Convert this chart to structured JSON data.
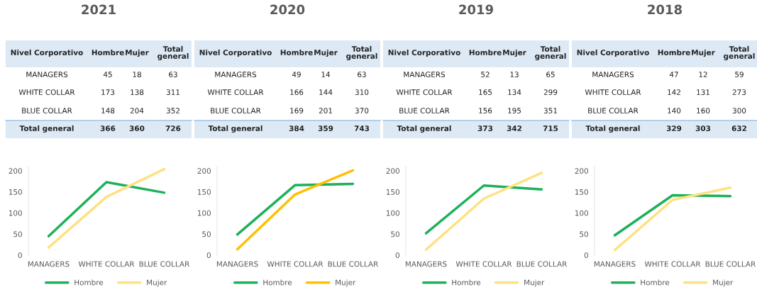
{
  "chart_data": [
    {
      "type": "line",
      "title": "2021",
      "categories": [
        "MANAGERS",
        "WHITE COLLAR",
        "BLUE COLLAR"
      ],
      "ylim": [
        0,
        210
      ],
      "yticks": [
        0,
        50,
        100,
        150,
        200
      ],
      "legend": "bottom",
      "series": [
        {
          "name": "Hombre",
          "color": "#1db15a",
          "values": [
            45,
            173,
            148
          ]
        },
        {
          "name": "Mujer",
          "color": "#ffe182",
          "values": [
            18,
            138,
            204
          ]
        }
      ],
      "annotations": [
        "Nivel Corporativo",
        "Hombre",
        "Mujer",
        "Total general",
        "MANAGERS",
        "45",
        "18",
        "63",
        "WHITE COLLAR",
        "173",
        "138",
        "311",
        "BLUE COLLAR",
        "148",
        "204",
        "352",
        "Total general",
        "366",
        "360",
        "726"
      ]
    },
    {
      "type": "line",
      "title": "2020",
      "categories": [
        "MANAGERS",
        "WHITE COLLAR",
        "BLUE COLLAR"
      ],
      "ylim": [
        0,
        210
      ],
      "yticks": [
        0,
        50,
        100,
        150,
        200
      ],
      "legend": "bottom",
      "series": [
        {
          "name": "Hombre",
          "color": "#1db15a",
          "values": [
            49,
            166,
            169
          ]
        },
        {
          "name": "Mujer",
          "color": "#ffc000",
          "values": [
            14,
            144,
            201
          ]
        }
      ],
      "annotations": [
        "Nivel Corporativo",
        "Hombre",
        "Mujer",
        "Total general",
        "MANAGERS",
        "49",
        "14",
        "63",
        "WHITE COLLAR",
        "166",
        "144",
        "310",
        "BLUE COLLAR",
        "169",
        "201",
        "370",
        "Total general",
        "384",
        "359",
        "743"
      ]
    },
    {
      "type": "line",
      "title": "2019",
      "categories": [
        "MANAGERS",
        "WHITE COLLAR",
        "BLUE COLLAR"
      ],
      "ylim": [
        0,
        210
      ],
      "yticks": [
        0,
        50,
        100,
        150,
        200
      ],
      "legend": "bottom",
      "series": [
        {
          "name": "Hombre",
          "color": "#1db15a",
          "values": [
            52,
            165,
            156
          ]
        },
        {
          "name": "Mujer",
          "color": "#ffe182",
          "values": [
            13,
            134,
            195
          ]
        }
      ],
      "annotations": [
        "Nivel Corporativo",
        "Hombre",
        "Mujer",
        "Total general",
        "MANAGERS",
        "52",
        "13",
        "65",
        "WHITE COLLAR",
        "165",
        "134",
        "299",
        "BLUE COLLAR",
        "156",
        "195",
        "351",
        "Total general",
        "373",
        "342",
        "715"
      ]
    },
    {
      "type": "line",
      "title": "2018",
      "categories": [
        "MANAGERS",
        "WHITE COLLAR",
        "BLUE COLLAR"
      ],
      "ylim": [
        0,
        210
      ],
      "yticks": [
        0,
        50,
        100,
        150,
        200
      ],
      "legend": "bottom",
      "series": [
        {
          "name": "Hombre",
          "color": "#1db15a",
          "values": [
            47,
            142,
            140
          ]
        },
        {
          "name": "Mujer",
          "color": "#ffe182",
          "values": [
            12,
            131,
            160
          ]
        }
      ],
      "annotations": [
        "Nivel Corporativo",
        "Hombre",
        "Mujer",
        "Total general",
        "MANAGERS",
        "47",
        "12",
        "59",
        "WHITE COLLAR",
        "142",
        "131",
        "273",
        "BLUE COLLAR",
        "140",
        "160",
        "300",
        "Total general",
        "329",
        "303",
        "632"
      ]
    }
  ]
}
